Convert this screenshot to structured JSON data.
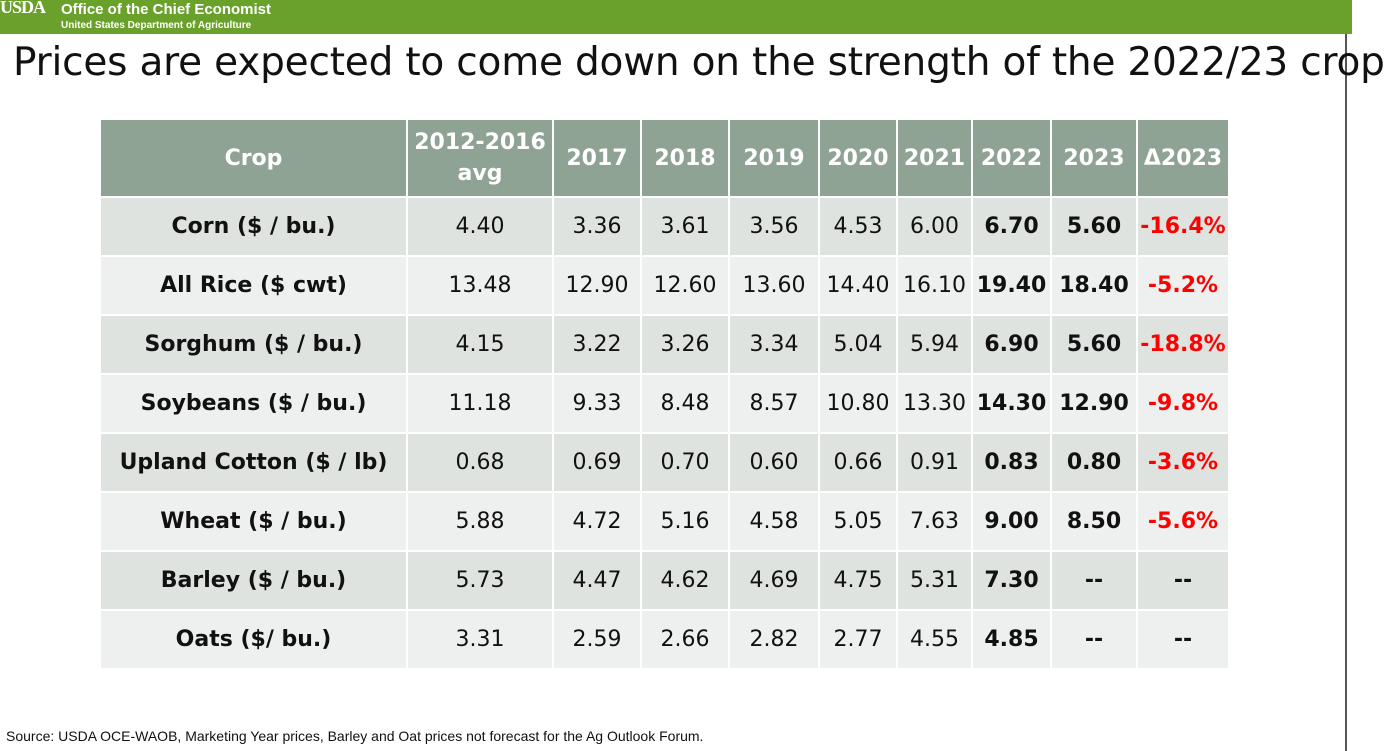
{
  "header": {
    "logo_text": "USDA",
    "office": "Office of the Chief Economist",
    "department": "United States Department of Agriculture"
  },
  "title": "Prices are expected to come down on the strength of the 2022/23 crop",
  "table": {
    "columns": [
      "Crop",
      "2012-2016",
      "avg",
      "2017",
      "2018",
      "2019",
      "2020",
      "2021",
      "2022",
      "2023",
      "Δ2023"
    ],
    "rows": [
      {
        "crop": "Corn ($ / bu.)",
        "avg": "4.40",
        "y2017": "3.36",
        "y2018": "3.61",
        "y2019": "3.56",
        "y2020": "4.53",
        "y2021": "6.00",
        "y2022": "6.70",
        "y2023": "5.60",
        "delta": "-16.4%"
      },
      {
        "crop": "All Rice ($ cwt)",
        "avg": "13.48",
        "y2017": "12.90",
        "y2018": "12.60",
        "y2019": "13.60",
        "y2020": "14.40",
        "y2021": "16.10",
        "y2022": "19.40",
        "y2023": "18.40",
        "delta": "-5.2%"
      },
      {
        "crop": "Sorghum ($ / bu.)",
        "avg": "4.15",
        "y2017": "3.22",
        "y2018": "3.26",
        "y2019": "3.34",
        "y2020": "5.04",
        "y2021": "5.94",
        "y2022": "6.90",
        "y2023": "5.60",
        "delta": "-18.8%"
      },
      {
        "crop": "Soybeans ($ / bu.)",
        "avg": "11.18",
        "y2017": "9.33",
        "y2018": "8.48",
        "y2019": "8.57",
        "y2020": "10.80",
        "y2021": "13.30",
        "y2022": "14.30",
        "y2023": "12.90",
        "delta": "-9.8%"
      },
      {
        "crop": "Upland Cotton ($ / lb)",
        "avg": "0.68",
        "y2017": "0.69",
        "y2018": "0.70",
        "y2019": "0.60",
        "y2020": "0.66",
        "y2021": "0.91",
        "y2022": "0.83",
        "y2023": "0.80",
        "delta": "-3.6%"
      },
      {
        "crop": "Wheat ($ / bu.)",
        "avg": "5.88",
        "y2017": "4.72",
        "y2018": "5.16",
        "y2019": "4.58",
        "y2020": "5.05",
        "y2021": "7.63",
        "y2022": "9.00",
        "y2023": "8.50",
        "delta": "-5.6%"
      },
      {
        "crop": "Barley ($ / bu.)",
        "avg": "5.73",
        "y2017": "4.47",
        "y2018": "4.62",
        "y2019": "4.69",
        "y2020": "4.75",
        "y2021": "5.31",
        "y2022": "7.30",
        "y2023": "--",
        "delta": "--"
      },
      {
        "crop": "Oats ($/ bu.)",
        "avg": "3.31",
        "y2017": "2.59",
        "y2018": "2.66",
        "y2019": "2.82",
        "y2020": "2.77",
        "y2021": "4.55",
        "y2022": "4.85",
        "y2023": "--",
        "delta": "--"
      }
    ]
  },
  "source": "Source: USDA OCE-WAOB, Marketing Year prices, Barley and Oat prices not forecast for the Ag Outlook Forum."
}
